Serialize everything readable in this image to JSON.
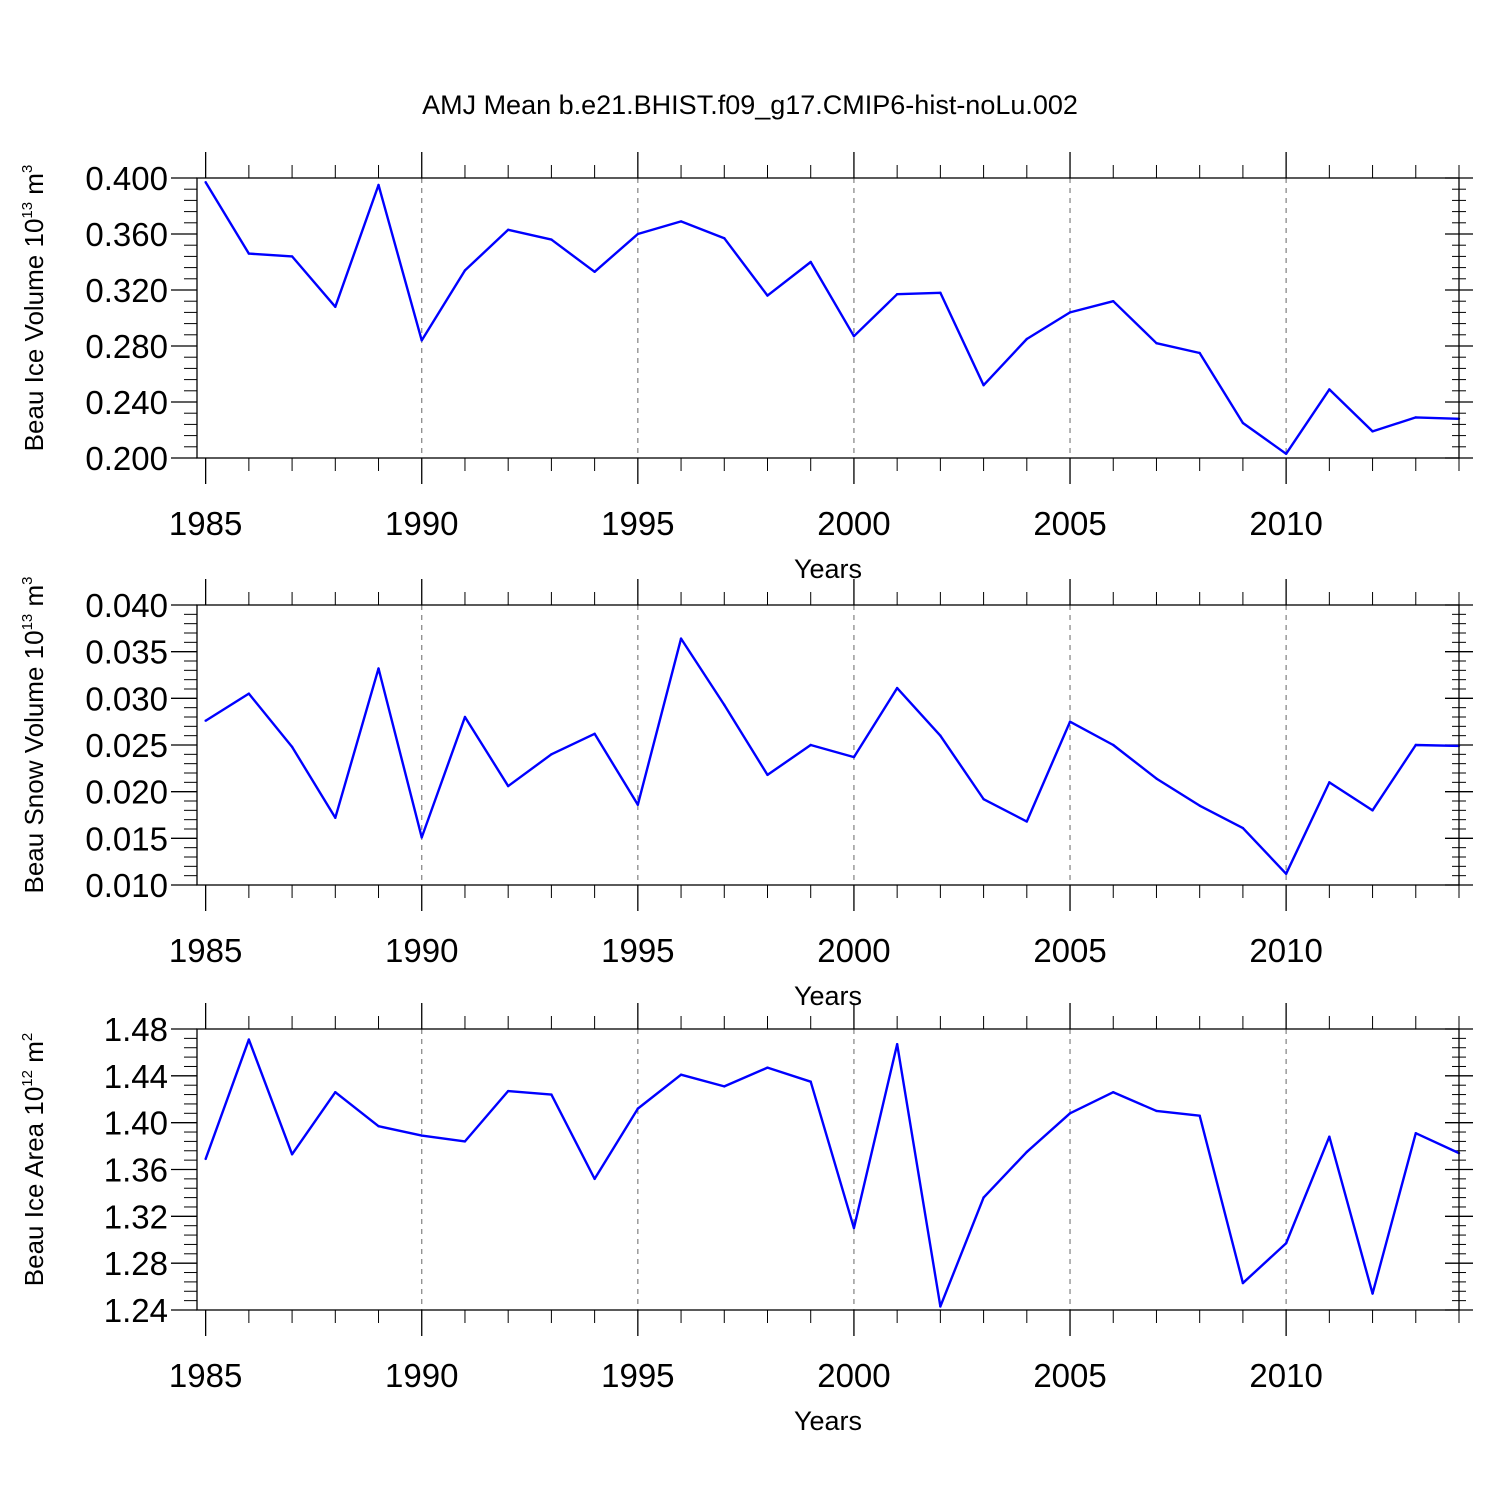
{
  "figure": {
    "title": "AMJ Mean b.e21.BHIST.f09_g17.CMIP6-hist-noLu.002",
    "line_color": "#0000ff",
    "grid_color": "#808080",
    "axis_color": "#000000"
  },
  "chart_data": [
    {
      "type": "line",
      "title": "AMJ Mean b.e21.BHIST.f09_g17.CMIP6-hist-noLu.002",
      "xlabel": "Years",
      "ylabel_text": "Beau Ice Volume 10",
      "ylabel_exponent": "13",
      "ylabel_unit": "m",
      "ylabel_unit_exponent": "3",
      "xlim": [
        1984.8,
        2014
      ],
      "ylim": [
        0.2,
        0.4
      ],
      "yticks": [
        0.2,
        0.24,
        0.28,
        0.32,
        0.36,
        0.4
      ],
      "ytick_labels": [
        "0.200",
        "0.240",
        "0.280",
        "0.320",
        "0.360",
        "0.400"
      ],
      "xticks": [
        1985,
        1990,
        1995,
        2000,
        2005,
        2010
      ],
      "xtick_labels": [
        "1985",
        "1990",
        "1995",
        "2000",
        "2005",
        "2010"
      ],
      "grid": "vertical dashed at major x ticks",
      "x": [
        1985,
        1986,
        1987,
        1988,
        1989,
        1990,
        1991,
        1992,
        1993,
        1994,
        1995,
        1996,
        1997,
        1998,
        1999,
        2000,
        2001,
        2002,
        2003,
        2004,
        2005,
        2006,
        2007,
        2008,
        2009,
        2010,
        2011,
        2012,
        2013,
        2014
      ],
      "y": [
        0.397,
        0.346,
        0.344,
        0.308,
        0.395,
        0.284,
        0.334,
        0.363,
        0.356,
        0.333,
        0.36,
        0.369,
        0.357,
        0.316,
        0.34,
        0.287,
        0.317,
        0.318,
        0.252,
        0.285,
        0.304,
        0.312,
        0.282,
        0.275,
        0.225,
        0.203,
        0.249,
        0.219,
        0.229,
        0.228
      ]
    },
    {
      "type": "line",
      "xlabel": "Years",
      "ylabel_text": "Beau Snow Volume 10",
      "ylabel_exponent": "13",
      "ylabel_unit": "m",
      "ylabel_unit_exponent": "3",
      "xlim": [
        1984.8,
        2014
      ],
      "ylim": [
        0.01,
        0.04
      ],
      "yticks": [
        0.01,
        0.015,
        0.02,
        0.025,
        0.03,
        0.035,
        0.04
      ],
      "ytick_labels": [
        "0.010",
        "0.015",
        "0.020",
        "0.025",
        "0.030",
        "0.035",
        "0.040"
      ],
      "xticks": [
        1985,
        1990,
        1995,
        2000,
        2005,
        2010
      ],
      "xtick_labels": [
        "1985",
        "1990",
        "1995",
        "2000",
        "2005",
        "2010"
      ],
      "grid": "vertical dashed at major x ticks",
      "x": [
        1985,
        1986,
        1987,
        1988,
        1989,
        1990,
        1991,
        1992,
        1993,
        1994,
        1995,
        1996,
        1997,
        1998,
        1999,
        2000,
        2001,
        2002,
        2003,
        2004,
        2005,
        2006,
        2007,
        2008,
        2009,
        2010,
        2011,
        2012,
        2013,
        2014
      ],
      "y": [
        0.0276,
        0.0305,
        0.0248,
        0.0172,
        0.0332,
        0.0151,
        0.028,
        0.0206,
        0.024,
        0.0262,
        0.0186,
        0.0364,
        0.0293,
        0.0218,
        0.025,
        0.0237,
        0.0311,
        0.026,
        0.0192,
        0.0168,
        0.0275,
        0.025,
        0.0214,
        0.0185,
        0.0161,
        0.0112,
        0.021,
        0.018,
        0.025,
        0.0249
      ]
    },
    {
      "type": "line",
      "xlabel": "Years",
      "ylabel_text": "Beau Ice Area 10",
      "ylabel_exponent": "12",
      "ylabel_unit": "m",
      "ylabel_unit_exponent": "2",
      "xlim": [
        1984.8,
        2014
      ],
      "ylim": [
        1.24,
        1.48
      ],
      "yticks": [
        1.24,
        1.28,
        1.32,
        1.36,
        1.4,
        1.44,
        1.48
      ],
      "ytick_labels": [
        "1.24",
        "1.28",
        "1.32",
        "1.36",
        "1.40",
        "1.44",
        "1.48"
      ],
      "xticks": [
        1985,
        1990,
        1995,
        2000,
        2005,
        2010
      ],
      "xtick_labels": [
        "1985",
        "1990",
        "1995",
        "2000",
        "2005",
        "2010"
      ],
      "grid": "vertical dashed at major x ticks",
      "x": [
        1985,
        1986,
        1987,
        1988,
        1989,
        1990,
        1991,
        1992,
        1993,
        1994,
        1995,
        1996,
        1997,
        1998,
        1999,
        2000,
        2001,
        2002,
        2003,
        2004,
        2005,
        2006,
        2007,
        2008,
        2009,
        2010,
        2011,
        2012,
        2013,
        2014
      ],
      "y": [
        1.369,
        1.471,
        1.373,
        1.426,
        1.397,
        1.389,
        1.384,
        1.427,
        1.424,
        1.352,
        1.412,
        1.441,
        1.431,
        1.447,
        1.435,
        1.31,
        1.467,
        1.243,
        1.336,
        1.375,
        1.408,
        1.426,
        1.41,
        1.406,
        1.263,
        1.297,
        1.388,
        1.254,
        1.391,
        1.374
      ]
    }
  ]
}
